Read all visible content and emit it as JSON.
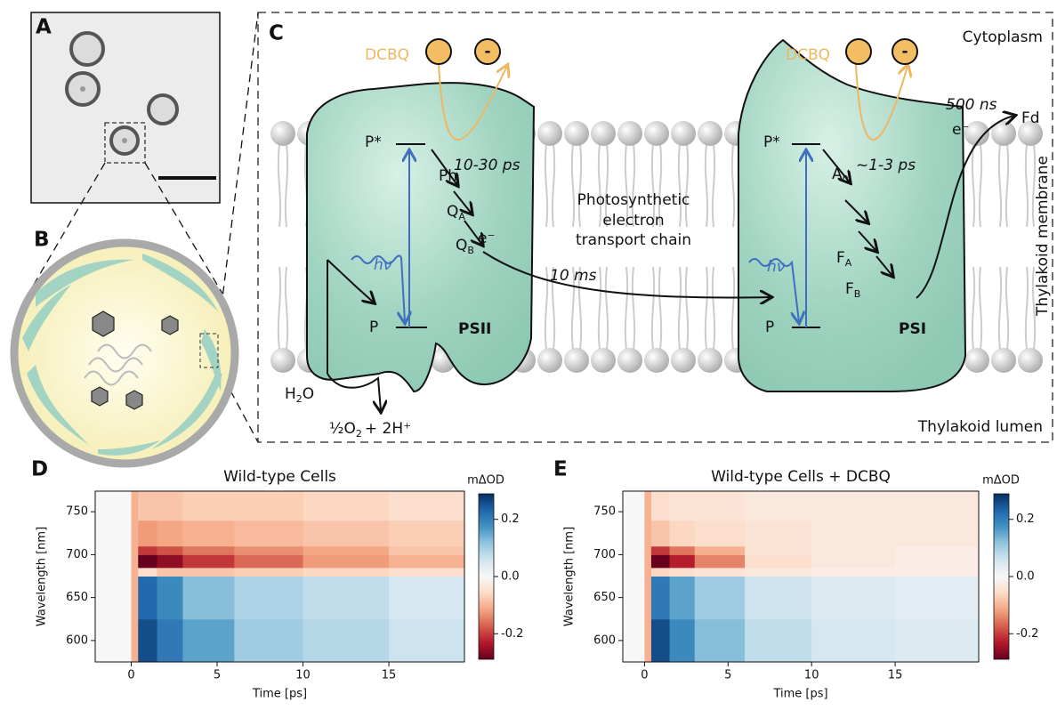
{
  "panel_labels": {
    "a": "A",
    "b": "B",
    "c": "C"
  },
  "diagram": {
    "cytoplasm": "Cytoplasm",
    "lumen": "Thylakoid lumen",
    "membrane": "Thylakoid membrane",
    "dcbq_1": "DCBQ",
    "dcbq_2": "DCBQ",
    "minus_1": "-",
    "minus_2": "-",
    "psii": {
      "name": "PSII",
      "p_star": "P*",
      "ph": "Ph",
      "time": "10-30 ps",
      "q_a": {
        "main": "Q",
        "sub": "A"
      },
      "q_b": {
        "main": "Q",
        "sub": "B"
      },
      "electron": "e⁻",
      "hv": "hν",
      "p": "P",
      "h2o": {
        "main": "H",
        "sub": "2",
        "tail": "O"
      },
      "o2": {
        "main": "½O",
        "sub": "2",
        "tail": "+ 2H⁺"
      }
    },
    "chain": [
      "Photosynthetic",
      "electron",
      "transport chain"
    ],
    "transfer_time": "10 ms",
    "psi": {
      "name": "PSI",
      "p_star": "P*",
      "a0": {
        "main": "A",
        "sub": "0"
      },
      "time": "~1-3 ps",
      "f_a": {
        "main": "F",
        "sub": "A"
      },
      "f_b": {
        "main": "F",
        "sub": "B"
      },
      "hv": "hν",
      "p": "P",
      "fd_time": "500 ns",
      "electron": "e⁻",
      "fd": "Fd"
    }
  },
  "chart_data": [
    {
      "type": "heatmap",
      "label": "D",
      "title": "Wild-type Cells",
      "xlabel": "Time [ps]",
      "ylabel": "Wavelength [nm]",
      "xlim": [
        -2.1,
        19.4
      ],
      "ylim": [
        575,
        774
      ],
      "xticks": [
        0,
        5,
        10,
        15
      ],
      "yticks": [
        600,
        650,
        700,
        750
      ],
      "x_edges": [
        -2.1,
        0,
        0.4,
        1.5,
        3,
        6,
        10,
        15,
        19.4
      ],
      "y_edges": [
        575,
        625,
        675,
        685,
        700,
        710,
        740,
        774
      ],
      "z": [
        [
          0,
          -0.1,
          0.25,
          0.2,
          0.15,
          0.1,
          0.08,
          0.06
        ],
        [
          0,
          -0.1,
          0.22,
          0.18,
          0.12,
          0.09,
          0.07,
          0.05
        ],
        [
          0,
          -0.1,
          -0.05,
          -0.08,
          -0.08,
          -0.07,
          -0.06,
          -0.05
        ],
        [
          0,
          -0.1,
          -0.28,
          -0.25,
          -0.2,
          -0.16,
          -0.12,
          -0.1
        ],
        [
          0,
          -0.1,
          -0.2,
          -0.18,
          -0.15,
          -0.13,
          -0.11,
          -0.08
        ],
        [
          0,
          -0.1,
          -0.12,
          -0.11,
          -0.1,
          -0.09,
          -0.08,
          -0.07
        ],
        [
          0,
          -0.1,
          -0.08,
          -0.08,
          -0.07,
          -0.07,
          -0.06,
          -0.05
        ]
      ],
      "colormap": "RdBu_r",
      "clim": [
        -0.28,
        0.28
      ],
      "colorbar_label": "mΔOD",
      "colorbar_ticks": [
        -0.2,
        {
          "value": 0,
          "label": "0.0"
        },
        0.2
      ]
    },
    {
      "type": "heatmap",
      "label": "E",
      "title": "Wild-type Cells + DCBQ",
      "xlabel": "Time [ps]",
      "ylabel": "Wavelength [nm]",
      "xlim": [
        -1.3,
        20
      ],
      "ylim": [
        575,
        774
      ],
      "xticks": [
        0,
        5,
        10,
        15
      ],
      "yticks": [
        600,
        650,
        700,
        750
      ],
      "x_edges": [
        -1.3,
        0,
        0.4,
        1.5,
        3,
        6,
        10,
        15,
        20
      ],
      "y_edges": [
        575,
        625,
        675,
        685,
        700,
        710,
        740,
        774
      ],
      "z": [
        [
          0,
          -0.1,
          0.25,
          0.18,
          0.12,
          0.07,
          0.05,
          0.04
        ],
        [
          0,
          -0.1,
          0.2,
          0.15,
          0.1,
          0.06,
          0.04,
          0.03
        ],
        [
          0,
          -0.1,
          -0.06,
          -0.05,
          -0.04,
          -0.03,
          -0.02,
          -0.02
        ],
        [
          0,
          -0.1,
          -0.28,
          -0.22,
          -0.14,
          -0.05,
          -0.03,
          -0.02
        ],
        [
          0,
          -0.1,
          -0.2,
          -0.15,
          -0.1,
          -0.04,
          -0.03,
          -0.02
        ],
        [
          0,
          -0.1,
          -0.08,
          -0.06,
          -0.05,
          -0.04,
          -0.03,
          -0.03
        ],
        [
          0,
          -0.1,
          -0.05,
          -0.04,
          -0.04,
          -0.03,
          -0.03,
          -0.03
        ]
      ],
      "colormap": "RdBu_r",
      "clim": [
        -0.28,
        0.28
      ],
      "colorbar_label": "mΔOD",
      "colorbar_ticks": [
        -0.2,
        {
          "value": 0,
          "label": "0.0"
        },
        0.2
      ]
    }
  ]
}
